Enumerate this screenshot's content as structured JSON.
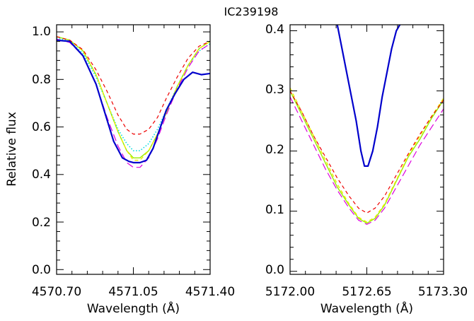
{
  "title": "IC239198",
  "chart_data": [
    {
      "type": "line",
      "xlabel": "Wavelength (Å)",
      "ylabel": "Relative flux",
      "xlim": [
        4570.7,
        4571.4
      ],
      "ylim": [
        -0.02,
        1.03
      ],
      "xticks": [
        4570.7,
        4571.05,
        4571.4
      ],
      "xtick_labels": [
        "4570.70",
        "4571.05",
        "4571.40"
      ],
      "yticks": [
        0.0,
        0.2,
        0.4,
        0.6,
        0.8,
        1.0
      ],
      "ytick_labels": [
        "0.0",
        "0.2",
        "0.4",
        "0.6",
        "0.8",
        "1.0"
      ],
      "series": [
        {
          "color": "#0000cc",
          "style": "solid",
          "width": 2.2,
          "x": [
            4570.7,
            4570.76,
            4570.82,
            4570.88,
            4570.92,
            4570.96,
            4571.0,
            4571.03,
            4571.05,
            4571.08,
            4571.11,
            4571.14,
            4571.17,
            4571.2,
            4571.24,
            4571.28,
            4571.32,
            4571.36,
            4571.4
          ],
          "y": [
            0.965,
            0.96,
            0.9,
            0.78,
            0.66,
            0.54,
            0.47,
            0.455,
            0.45,
            0.45,
            0.46,
            0.51,
            0.59,
            0.67,
            0.74,
            0.8,
            0.83,
            0.82,
            0.825
          ]
        },
        {
          "color": "#00dddd",
          "style": "dotted",
          "width": 1.6,
          "x": [
            4570.7,
            4570.76,
            4570.82,
            4570.88,
            4570.93,
            4570.98,
            4571.02,
            4571.05,
            4571.08,
            4571.12,
            4571.16,
            4571.2,
            4571.25,
            4571.3,
            4571.35,
            4571.4
          ],
          "y": [
            0.975,
            0.96,
            0.91,
            0.81,
            0.7,
            0.59,
            0.53,
            0.5,
            0.5,
            0.53,
            0.59,
            0.67,
            0.77,
            0.86,
            0.92,
            0.95
          ]
        },
        {
          "color": "#99ee00",
          "style": "solid",
          "width": 1.4,
          "x": [
            4570.7,
            4570.76,
            4570.82,
            4570.88,
            4570.93,
            4570.98,
            4571.02,
            4571.05,
            4571.08,
            4571.12,
            4571.16,
            4571.2,
            4571.25,
            4571.3,
            4571.35,
            4571.4
          ],
          "y": [
            0.98,
            0.965,
            0.92,
            0.82,
            0.7,
            0.58,
            0.5,
            0.47,
            0.47,
            0.5,
            0.57,
            0.66,
            0.77,
            0.86,
            0.93,
            0.96
          ]
        },
        {
          "color": "#eeee00",
          "style": "dashed",
          "width": 1.4,
          "x": [
            4570.7,
            4570.76,
            4570.82,
            4570.88,
            4570.93,
            4570.98,
            4571.02,
            4571.05,
            4571.08,
            4571.12,
            4571.16,
            4571.2,
            4571.25,
            4571.3,
            4571.35,
            4571.4
          ],
          "y": [
            0.98,
            0.965,
            0.92,
            0.82,
            0.7,
            0.58,
            0.5,
            0.46,
            0.46,
            0.5,
            0.57,
            0.66,
            0.77,
            0.86,
            0.93,
            0.96
          ]
        },
        {
          "color": "#ee0000",
          "style": "dashed",
          "width": 1.2,
          "x": [
            4570.7,
            4570.76,
            4570.82,
            4570.88,
            4570.93,
            4570.98,
            4571.02,
            4571.05,
            4571.08,
            4571.12,
            4571.16,
            4571.2,
            4571.25,
            4571.3,
            4571.35,
            4571.4
          ],
          "y": [
            0.98,
            0.965,
            0.925,
            0.84,
            0.75,
            0.65,
            0.59,
            0.57,
            0.57,
            0.59,
            0.64,
            0.72,
            0.81,
            0.89,
            0.94,
            0.96
          ]
        },
        {
          "color": "#dd00dd",
          "style": "longdash",
          "width": 1.2,
          "x": [
            4570.7,
            4570.76,
            4570.82,
            4570.88,
            4570.93,
            4570.98,
            4571.02,
            4571.05,
            4571.08,
            4571.12,
            4571.16,
            4571.2,
            4571.25,
            4571.3,
            4571.35,
            4571.4
          ],
          "y": [
            0.97,
            0.955,
            0.9,
            0.78,
            0.64,
            0.52,
            0.45,
            0.43,
            0.43,
            0.47,
            0.55,
            0.65,
            0.76,
            0.85,
            0.92,
            0.95
          ]
        }
      ]
    },
    {
      "type": "line",
      "xlabel": "Wavelength (Å)",
      "ylabel": "",
      "xlim": [
        5172.0,
        5173.3
      ],
      "ylim": [
        -0.005,
        0.41
      ],
      "xticks": [
        5172.0,
        5172.65,
        5173.3
      ],
      "xtick_labels": [
        "5172.00",
        "5172.65",
        "5173.30"
      ],
      "yticks": [
        0.0,
        0.1,
        0.2,
        0.3,
        0.4
      ],
      "ytick_labels": [
        "0.0",
        "0.1",
        "0.2",
        "0.3",
        "0.4"
      ],
      "series": [
        {
          "color": "#0000cc",
          "style": "solid",
          "width": 2.2,
          "x": [
            5172.4,
            5172.44,
            5172.48,
            5172.52,
            5172.56,
            5172.6,
            5172.63,
            5172.66,
            5172.7,
            5172.74,
            5172.78,
            5172.82,
            5172.86,
            5172.9,
            5172.93
          ],
          "y": [
            0.41,
            0.37,
            0.33,
            0.29,
            0.25,
            0.2,
            0.175,
            0.175,
            0.2,
            0.24,
            0.29,
            0.33,
            0.37,
            0.4,
            0.41
          ]
        },
        {
          "color": "#99ee00",
          "style": "solid",
          "width": 1.4,
          "x": [
            5172.0,
            5172.1,
            5172.2,
            5172.3,
            5172.4,
            5172.5,
            5172.58,
            5172.65,
            5172.72,
            5172.8,
            5172.9,
            5173.0,
            5173.1,
            5173.2,
            5173.3
          ],
          "y": [
            0.3,
            0.26,
            0.22,
            0.18,
            0.14,
            0.11,
            0.088,
            0.08,
            0.088,
            0.11,
            0.15,
            0.19,
            0.22,
            0.255,
            0.285
          ]
        },
        {
          "color": "#eeee00",
          "style": "dashed",
          "width": 1.4,
          "x": [
            5172.0,
            5172.1,
            5172.2,
            5172.3,
            5172.4,
            5172.5,
            5172.58,
            5172.65,
            5172.72,
            5172.8,
            5172.9,
            5173.0,
            5173.1,
            5173.2,
            5173.3
          ],
          "y": [
            0.305,
            0.265,
            0.225,
            0.185,
            0.145,
            0.112,
            0.09,
            0.082,
            0.09,
            0.112,
            0.152,
            0.192,
            0.225,
            0.258,
            0.288
          ]
        },
        {
          "color": "#ee0000",
          "style": "dashed",
          "width": 1.2,
          "x": [
            5172.0,
            5172.1,
            5172.2,
            5172.3,
            5172.4,
            5172.5,
            5172.58,
            5172.65,
            5172.72,
            5172.8,
            5172.9,
            5173.0,
            5173.1,
            5173.2,
            5173.3
          ],
          "y": [
            0.3,
            0.265,
            0.225,
            0.19,
            0.155,
            0.125,
            0.105,
            0.097,
            0.105,
            0.125,
            0.16,
            0.195,
            0.228,
            0.258,
            0.285
          ]
        },
        {
          "color": "#dd00dd",
          "style": "longdash",
          "width": 1.2,
          "x": [
            5172.0,
            5172.1,
            5172.2,
            5172.3,
            5172.4,
            5172.5,
            5172.58,
            5172.65,
            5172.72,
            5172.8,
            5172.9,
            5173.0,
            5173.1,
            5173.2,
            5173.3
          ],
          "y": [
            0.29,
            0.25,
            0.21,
            0.17,
            0.135,
            0.105,
            0.085,
            0.078,
            0.085,
            0.105,
            0.14,
            0.175,
            0.21,
            0.24,
            0.27
          ]
        }
      ]
    }
  ]
}
